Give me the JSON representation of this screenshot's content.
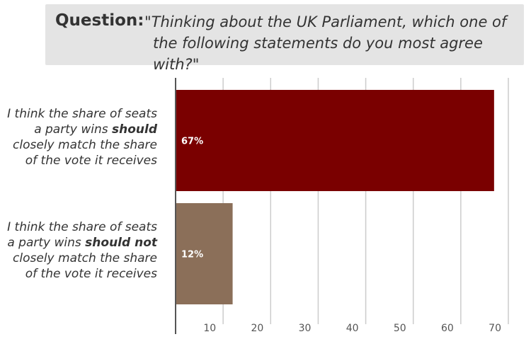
{
  "question": {
    "label": "Question:",
    "text_line1": "\"Thinking about the UK Parliament, which one of",
    "text_line2": "the following statements do you most agree with?\""
  },
  "chart_data": {
    "type": "bar",
    "orientation": "horizontal",
    "categories": [
      {
        "lines": [
          [
            "I think the share of seats",
            ""
          ],
          [
            "a party wins ",
            "should"
          ],
          [
            "closely match the share",
            ""
          ],
          [
            "of the vote it receives",
            ""
          ]
        ]
      },
      {
        "lines": [
          [
            "I think the share of seats",
            ""
          ],
          [
            "a party wins ",
            "should not"
          ],
          [
            "closely match the share",
            ""
          ],
          [
            "of the vote it receives",
            ""
          ]
        ]
      }
    ],
    "values": [
      67,
      12
    ],
    "value_labels": [
      "67%",
      "12%"
    ],
    "colors": [
      "#7a0000",
      "#8b6f59"
    ],
    "xlim": [
      0,
      70
    ],
    "xticks": [
      10,
      20,
      30,
      40,
      50,
      60,
      70
    ],
    "grid": true,
    "xlabel": "",
    "ylabel": ""
  }
}
